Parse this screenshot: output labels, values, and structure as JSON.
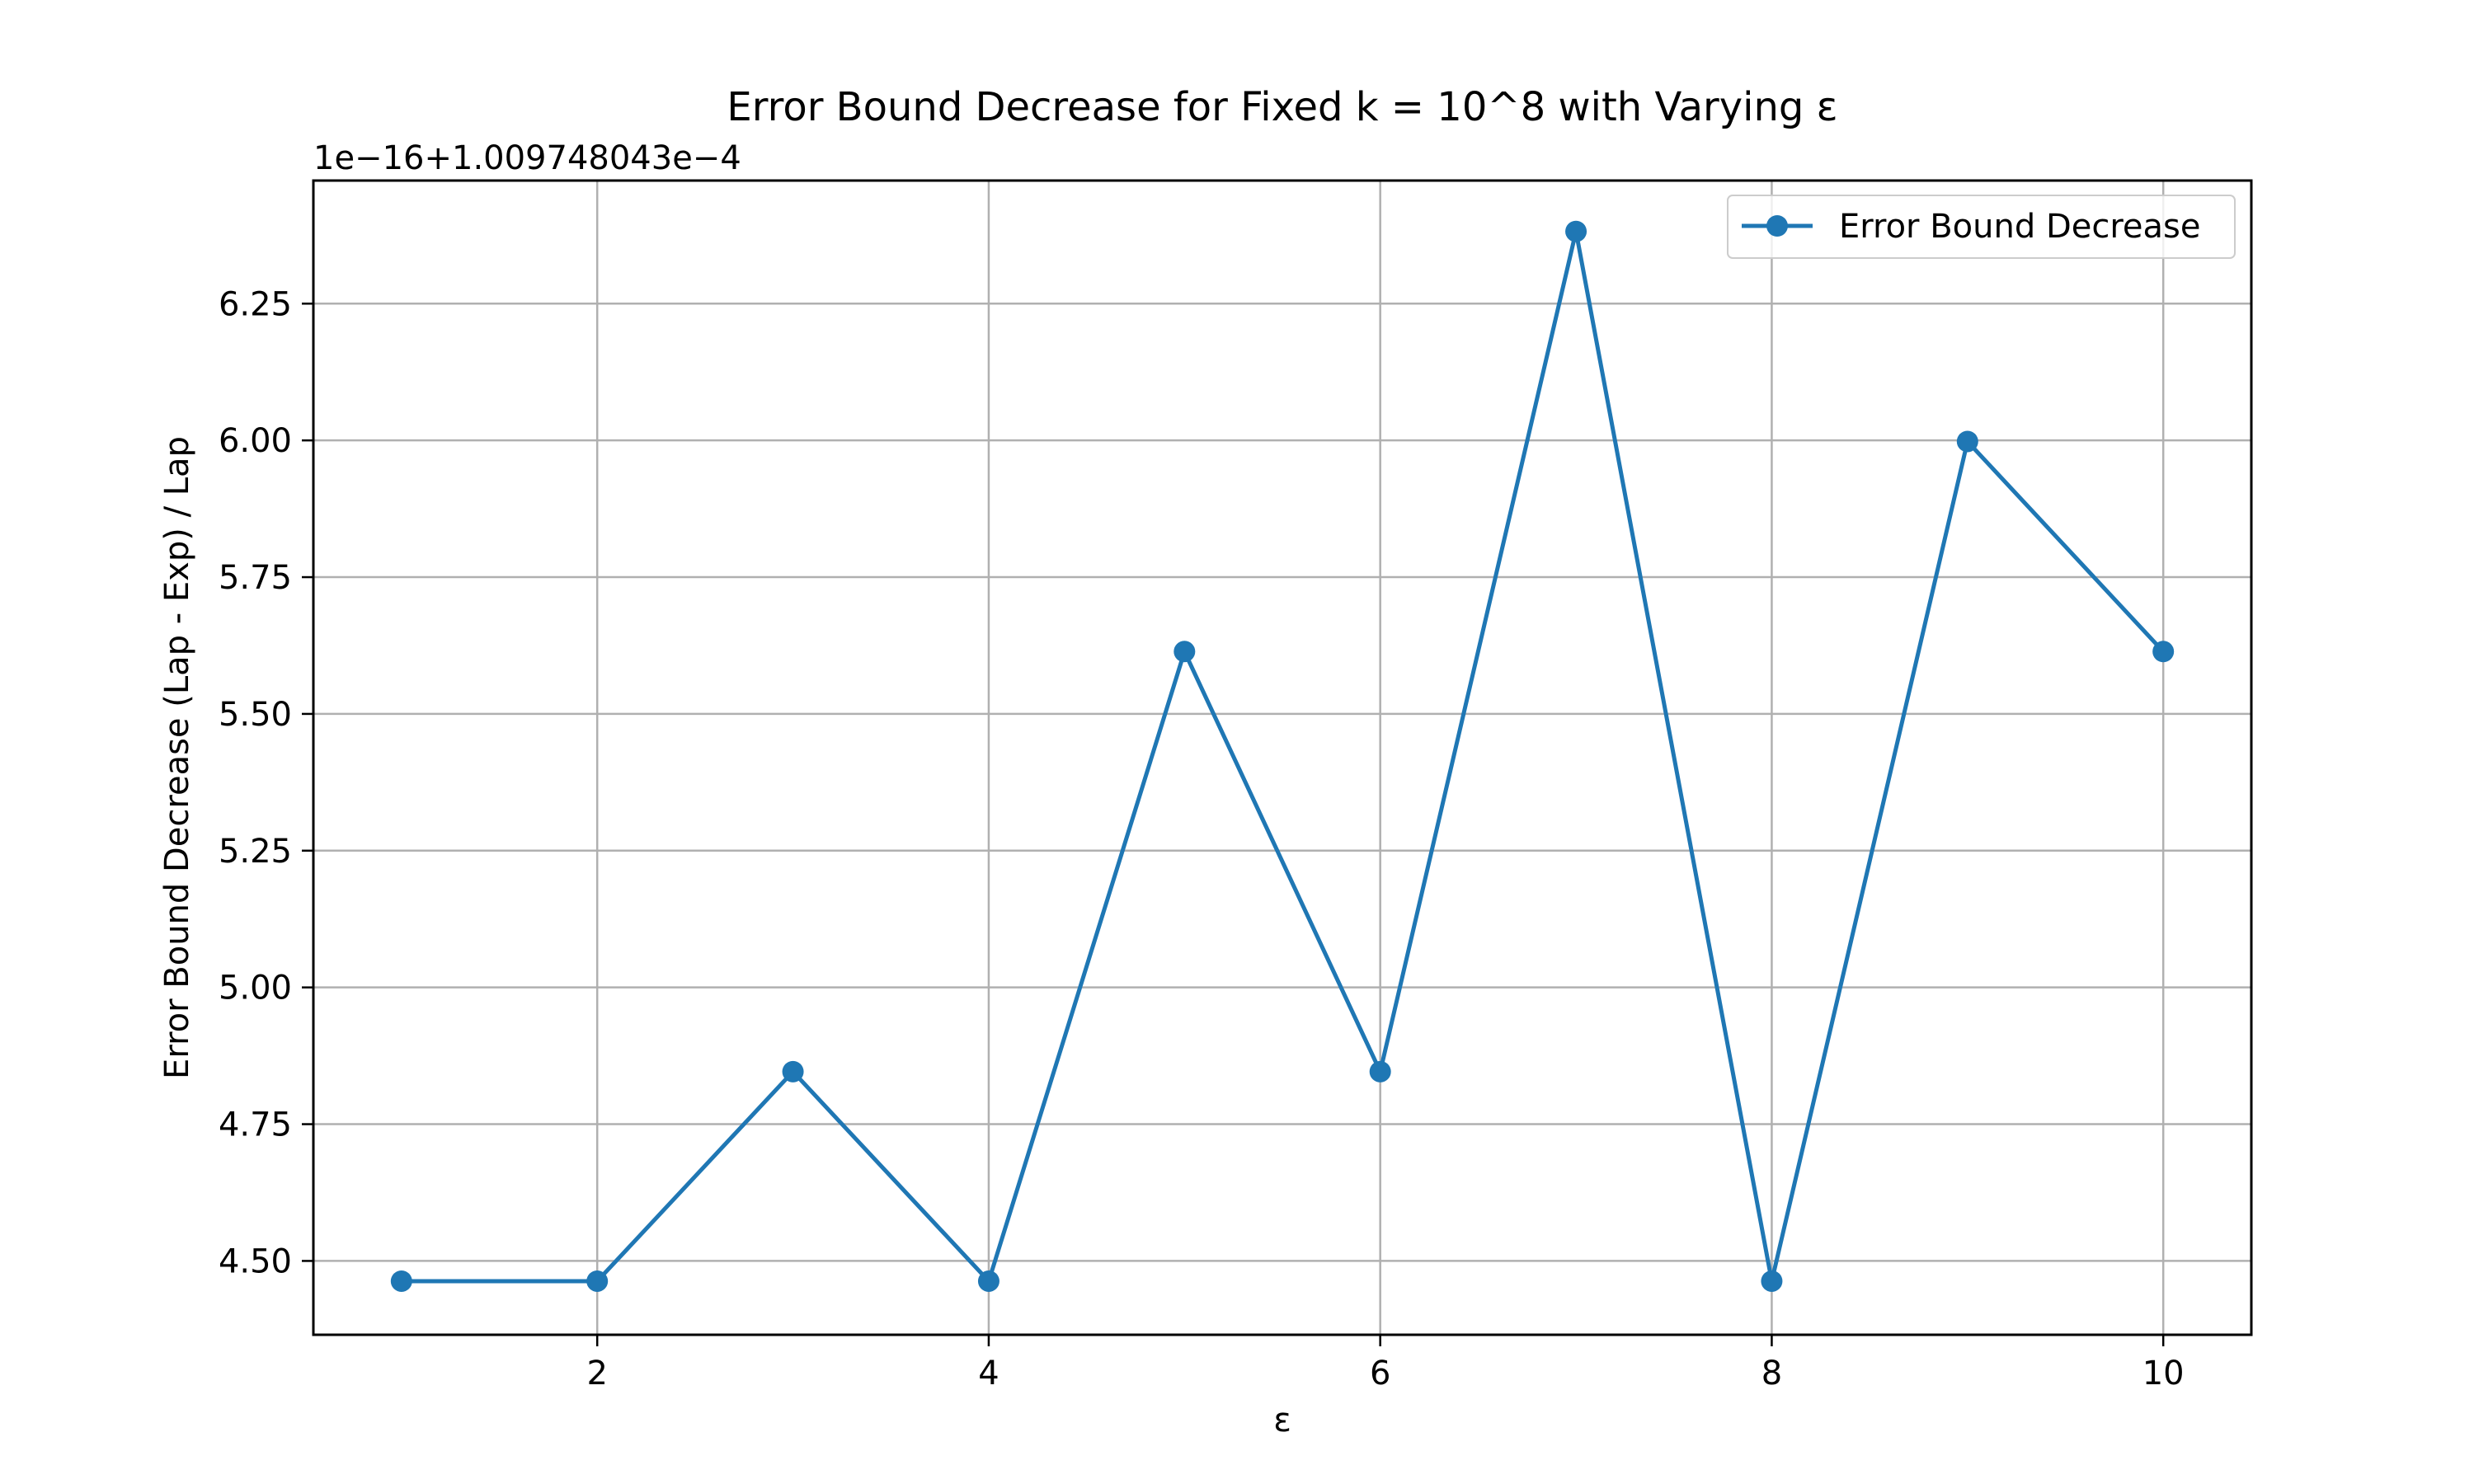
{
  "chart_data": {
    "type": "line",
    "title": "Error Bound Decrease for Fixed k = 10^8 with Varying ε",
    "xlabel": "ε",
    "ylabel": "Error Bound Decrease (Lap - Exp) / Lap",
    "offset_text": "1e−16+1.009748043e−4",
    "xlim": [
      0.55,
      10.45
    ],
    "ylim": [
      4.365,
      6.475
    ],
    "x_ticks": [
      2,
      4,
      6,
      8,
      10
    ],
    "x_tick_labels": [
      "2",
      "4",
      "6",
      "8",
      "10"
    ],
    "y_ticks": [
      4.5,
      4.75,
      5.0,
      5.25,
      5.5,
      5.75,
      6.0,
      6.25
    ],
    "y_tick_labels": [
      "4.50",
      "4.75",
      "5.00",
      "5.25",
      "5.50",
      "5.75",
      "6.00",
      "6.25"
    ],
    "grid": true,
    "legend_position": "top-right",
    "series": [
      {
        "name": "Error Bound Decrease",
        "color": "#1f77b4",
        "marker": "circle",
        "x": [
          1,
          2,
          3,
          4,
          5,
          6,
          7,
          8,
          9,
          10
        ],
        "y": [
          4.463,
          4.463,
          4.846,
          4.463,
          5.614,
          4.846,
          6.382,
          4.463,
          5.998,
          5.614
        ]
      }
    ],
    "colors": {
      "series": "#1f77b4",
      "grid": "#b0b0b0",
      "axes": "#000000"
    }
  }
}
